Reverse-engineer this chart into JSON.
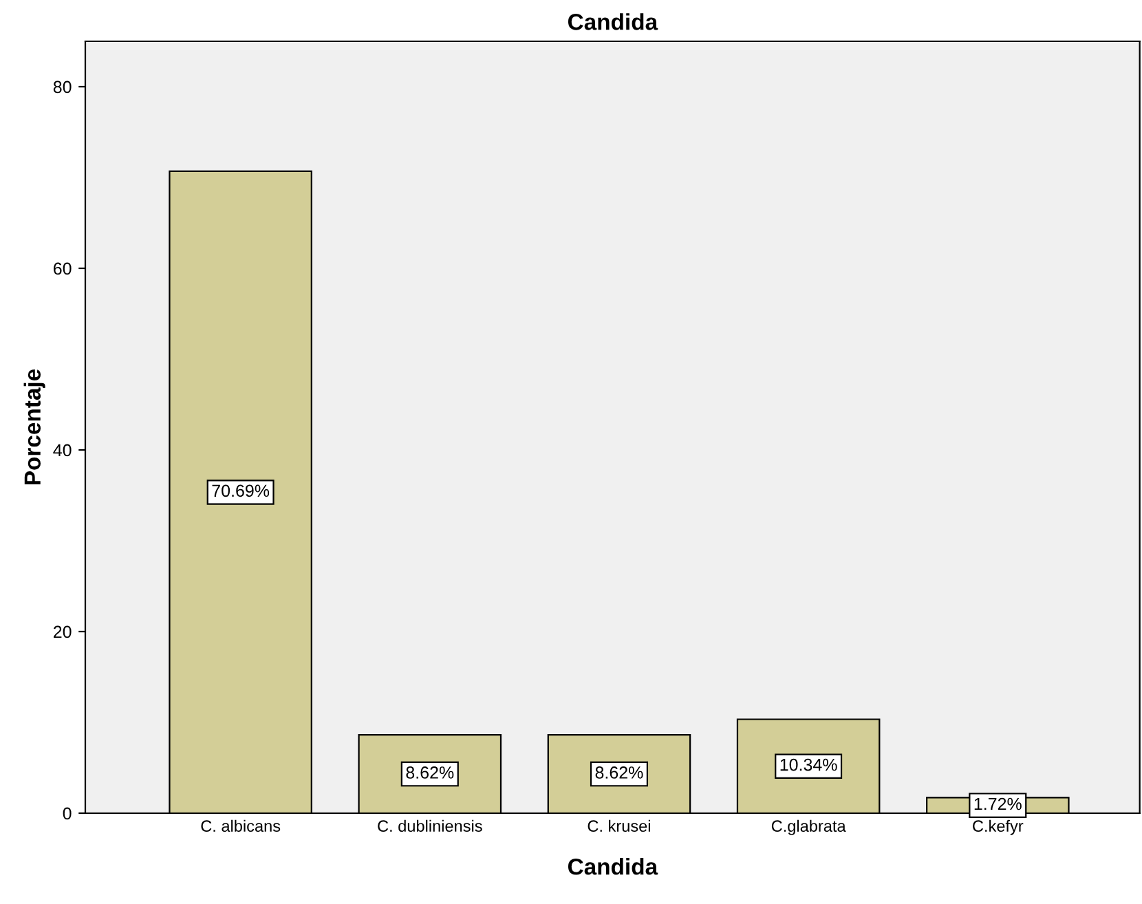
{
  "chart_data": {
    "type": "bar",
    "title": "Candida",
    "xlabel": "Candida",
    "ylabel": "Porcentaje",
    "categories": [
      "C. albicans",
      "C. dubliniensis",
      "C. krusei",
      "C.glabrata",
      "C.kefyr"
    ],
    "values": [
      70.69,
      8.62,
      8.62,
      10.34,
      1.72
    ],
    "value_labels": [
      "70.69%",
      "8.62%",
      "8.62%",
      "10.34%",
      "1.72%"
    ],
    "color": "#d3ce97",
    "ylim": [
      0,
      85
    ],
    "yticks": [
      0,
      20,
      40,
      60,
      80
    ],
    "grid": false,
    "legend": false
  }
}
